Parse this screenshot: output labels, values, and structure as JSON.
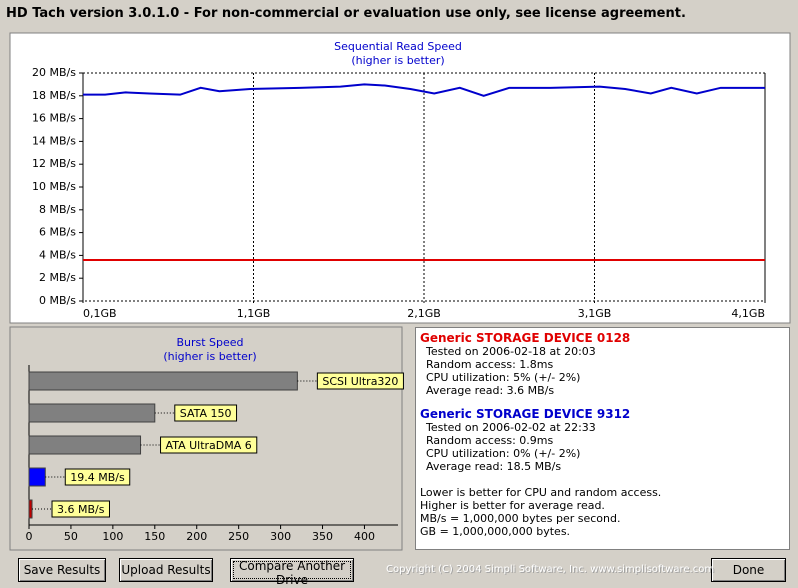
{
  "window": {
    "title": "HD Tach version 3.0.1.0  - For non-commercial or evaluation use only, see license agreement."
  },
  "chart_data": [
    {
      "type": "line",
      "title": "Sequential Read Speed",
      "subtitle": "(higher is better)",
      "x": [
        0.1,
        0.23,
        0.35,
        0.49,
        0.67,
        0.79,
        0.9,
        1.08,
        1.37,
        1.61,
        1.75,
        1.87,
        2.02,
        2.16,
        2.31,
        2.45,
        2.6,
        2.84,
        3.13,
        3.28,
        3.43,
        3.55,
        3.7,
        3.84,
        4.1
      ],
      "series": [
        {
          "name": "Generic STORAGE DEVICE 9312",
          "color": "#0000cc",
          "values": [
            18.1,
            18.1,
            18.3,
            18.2,
            18.1,
            18.7,
            18.4,
            18.6,
            18.7,
            18.8,
            19.0,
            18.9,
            18.6,
            18.2,
            18.7,
            18.0,
            18.7,
            18.7,
            18.8,
            18.6,
            18.2,
            18.7,
            18.2,
            18.7,
            18.7
          ]
        },
        {
          "name": "Generic STORAGE DEVICE 0128",
          "color": "#e00000",
          "values": [
            3.6,
            3.6,
            3.6,
            3.6,
            3.6,
            3.6,
            3.6,
            3.6,
            3.6,
            3.6,
            3.6,
            3.6,
            3.6,
            3.6,
            3.6,
            3.6,
            3.6,
            3.6,
            3.6,
            3.6,
            3.6,
            3.6,
            3.6,
            3.6,
            3.6
          ]
        }
      ],
      "xlim": [
        0.1,
        4.1
      ],
      "xticks": [
        {
          "value": 0.1,
          "label": "0,1GB"
        },
        {
          "value": 1.1,
          "label": "1,1GB"
        },
        {
          "value": 2.1,
          "label": "2,1GB"
        },
        {
          "value": 3.1,
          "label": "3,1GB"
        },
        {
          "value": 4.1,
          "label": "4,1GB"
        }
      ],
      "ylim": [
        0,
        20
      ],
      "yticks": [
        {
          "value": 0,
          "label": "0 MB/s"
        },
        {
          "value": 2,
          "label": "2 MB/s"
        },
        {
          "value": 4,
          "label": "4 MB/s"
        },
        {
          "value": 6,
          "label": "6 MB/s"
        },
        {
          "value": 8,
          "label": "8 MB/s"
        },
        {
          "value": 10,
          "label": "10 MB/s"
        },
        {
          "value": 12,
          "label": "12 MB/s"
        },
        {
          "value": 14,
          "label": "14 MB/s"
        },
        {
          "value": 16,
          "label": "16 MB/s"
        },
        {
          "value": 18,
          "label": "18 MB/s"
        },
        {
          "value": 20,
          "label": "20 MB/s"
        }
      ],
      "grid": true
    },
    {
      "type": "hbar",
      "title": "Burst Speed",
      "subtitle": "(higher is better)",
      "categories": [
        "SCSI Ultra320",
        "SATA 150",
        "ATA UltraDMA 6",
        null,
        null
      ],
      "values": [
        320,
        150,
        133,
        19.4,
        3.6
      ],
      "value_labels": [
        null,
        null,
        null,
        "19.4 MB/s",
        "3.6 MB/s"
      ],
      "colors": [
        "#808080",
        "#808080",
        "#808080",
        "#0000ff",
        "#c00000"
      ],
      "xlim": [
        0,
        440
      ],
      "xticks": [
        0,
        50,
        100,
        150,
        200,
        250,
        300,
        350,
        400
      ]
    }
  ],
  "info": {
    "devices": [
      {
        "name": "Generic STORAGE DEVICE 0128",
        "color": "#e00000",
        "lines": [
          "Tested on 2006-02-18 at 20:03",
          "Random access: 1.8ms",
          "CPU utilization: 5% (+/- 2%)",
          "Average read: 3.6 MB/s"
        ]
      },
      {
        "name": "Generic STORAGE DEVICE 9312",
        "color": "#0000cc",
        "lines": [
          "Tested on 2006-02-02 at 22:33",
          "Random access: 0.9ms",
          "CPU utilization: 0% (+/- 2%)",
          "Average read: 18.5 MB/s"
        ]
      }
    ],
    "notes": [
      "Lower is better for CPU and random access.",
      "Higher is better for average read.",
      "MB/s = 1,000,000 bytes per second.",
      "GB = 1,000,000,000 bytes."
    ]
  },
  "buttons": [
    "Save Results",
    "Upload Results",
    "Compare Another Drive",
    "Done"
  ],
  "copyright": "Copyright (C) 2004 Simpli Software, Inc. www.simplisoftware.com"
}
